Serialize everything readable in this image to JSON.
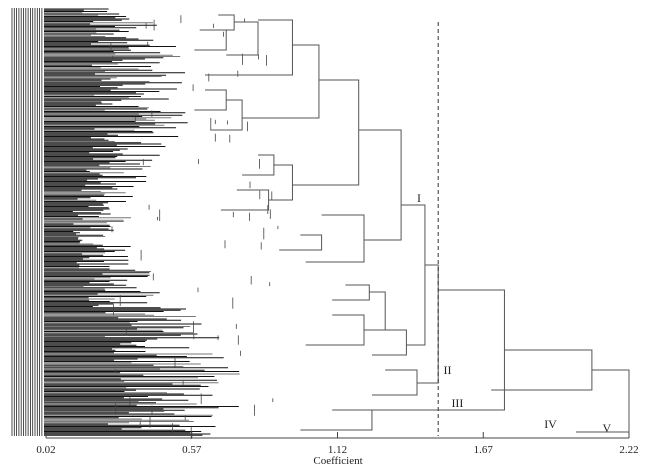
{
  "figure": {
    "x_axis_title": "Coefficient",
    "cut_line_value": 1.5
  },
  "chart_data": {
    "type": "dendrogram",
    "xlabel": "Coefficient",
    "x_ticks": [
      "0.02",
      "0.57",
      "1.12",
      "1.67",
      "2.22"
    ],
    "x_tick_values": [
      0.02,
      0.57,
      1.12,
      1.67,
      2.22
    ],
    "xlim": [
      0.02,
      2.22
    ],
    "cut_line": 1.5,
    "cluster_labels": [
      "I",
      "II",
      "III",
      "IV",
      "V"
    ],
    "clusters": [
      {
        "label": "I",
        "merge_height": 1.5
      },
      {
        "label": "II",
        "merge_height": 1.5
      },
      {
        "label": "III",
        "merge_height": 1.75
      },
      {
        "label": "IV",
        "merge_height": 2.22
      },
      {
        "label": "V",
        "merge_height": 2.22
      }
    ],
    "colors": {
      "lines": "#555555",
      "dense_leaves": "#111111",
      "cut_line": "#333333"
    }
  }
}
